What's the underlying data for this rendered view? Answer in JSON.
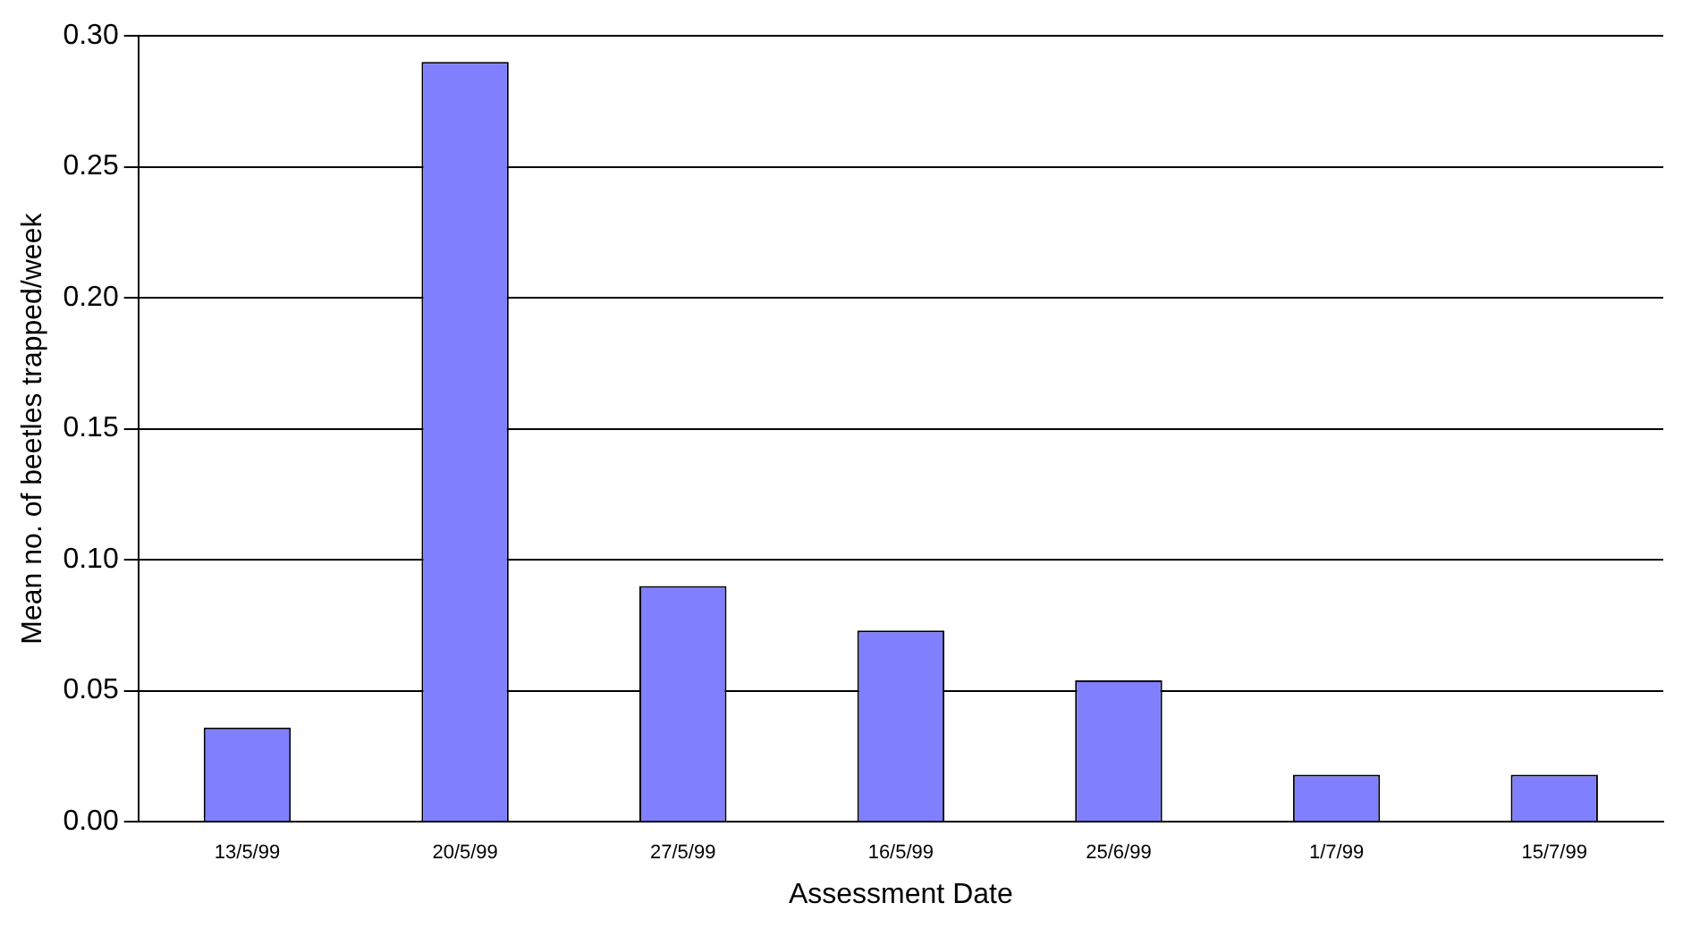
{
  "chart_data": {
    "type": "bar",
    "xlabel": "Assessment Date",
    "ylabel": "Mean no. of beetles trapped/week",
    "categories": [
      "13/5/99",
      "20/5/99",
      "27/5/99",
      "16/5/99",
      "25/6/99",
      "1/7/99",
      "15/7/99"
    ],
    "values": [
      0.036,
      0.29,
      0.09,
      0.073,
      0.054,
      0.018,
      0.018
    ],
    "color": "#8080ff",
    "ylim": [
      0,
      0.3
    ],
    "yticks": [
      {
        "value": 0,
        "label": "0.00"
      },
      {
        "value": 0.05,
        "label": "0.05"
      },
      {
        "value": 0.1,
        "label": "0.10"
      },
      {
        "value": 0.15,
        "label": "0.15"
      },
      {
        "value": 0.2,
        "label": "0.20"
      },
      {
        "value": 0.25,
        "label": "0.25"
      },
      {
        "value": 0.3,
        "label": "0.30"
      }
    ],
    "grid": "y"
  }
}
